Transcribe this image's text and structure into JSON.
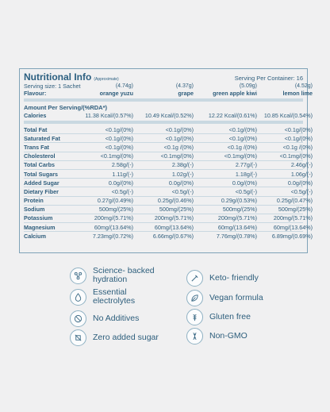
{
  "panel": {
    "title": "Nutritional Info",
    "approx": "(Approximate)",
    "serving_per_container": "Serving Per Container: 16",
    "serving_size_label": "Serving size: 1 Sachet",
    "flavour_label": "Flavour:",
    "flavours": [
      {
        "weight": "(4.74g)",
        "name": "orange yuzu"
      },
      {
        "weight": "(4.37g)",
        "name": "grape"
      },
      {
        "weight": "(5.09g)",
        "name": "green apple kiwi"
      },
      {
        "weight": "(4.52g)",
        "name": "lemon lime"
      }
    ],
    "amount_label": "Amount Per Serving/(%RDA*)",
    "calories_label": "Calories",
    "calories": [
      "11.38 Kcal/(0.57%)",
      "10.49 Kcal/(0.52%)",
      "12.22 Kcal/(0.61%)",
      "10.85 Kcal/(0.54%)"
    ],
    "rows": [
      {
        "label": "Total Fat",
        "values": [
          "<0.1g/(0%)",
          "<0.1g/(0%)",
          "<0.1g/(0%)",
          "<0.1g/(0%)"
        ]
      },
      {
        "label": "Saturated Fat",
        "values": [
          "<0.1g/(0%)",
          "<0.1g/(0%)",
          "<0.1g/(0%)",
          "<0.1g/(0%)"
        ]
      },
      {
        "label": "Trans Fat",
        "values": [
          "<0.1g/(0%)",
          "<0.1g /(0%)",
          "<0.1g /(0%)",
          "<0.1g /(0%)"
        ]
      },
      {
        "label": "Cholesterol",
        "values": [
          "<0.1mg/(0%)",
          "<0.1mg/(0%)",
          "<0.1mg/(0%)",
          "<0.1mg/(0%)"
        ]
      },
      {
        "label": "Total Carbs",
        "values": [
          "2.58g/(-)",
          "2.38g/(-)",
          "2.77g/(-)",
          "2.46g/(-)"
        ]
      },
      {
        "label": "Total Sugars",
        "values": [
          "1.11g/(-)",
          "1.02g/(-)",
          "1.18g/(-)",
          "1.06g/(-)"
        ]
      },
      {
        "label": "Added Sugar",
        "values": [
          "0.0g/(0%)",
          "0.0g/(0%)",
          "0.0g/(0%)",
          "0.0g/(0%)"
        ]
      },
      {
        "label": "Dietary Fiber",
        "values": [
          "<0.5g/(-)",
          "<0.5g/(-)",
          "<0.5g/(-)",
          "<0.5g/(-)"
        ]
      },
      {
        "label": "Protein",
        "values": [
          "0.27g/(0.49%)",
          "0.25g/(0.46%)",
          "0.29g/(0.53%)",
          "0.25g/(0.47%)"
        ]
      },
      {
        "label": "Sodium",
        "values": [
          "500mg/(25%)",
          "500mg/(25%)",
          "500mg/(25%)",
          "500mg/(25%)"
        ]
      },
      {
        "label": "Potassium",
        "values": [
          "200mg/(5.71%)",
          "200mg/(5.71%)",
          "200mg/(5.71%)",
          "200mg/(5.71%)"
        ]
      },
      {
        "label": "Magnesium",
        "values": [
          "60mg/(13.64%)",
          "60mg/(13.64%)",
          "60mg/(13.64%)",
          "60mg/(13.64%)"
        ]
      },
      {
        "label": "Calcium",
        "values": [
          "7.23mg/(0.72%)",
          "6.66mg/(0.67%)",
          "7.76mg/(0.78%)",
          "6.89mg/(0.69%)"
        ]
      }
    ]
  },
  "features": {
    "left": [
      {
        "icon": "molecule-icon",
        "text": "Science- backed hydration"
      },
      {
        "icon": "droplet-icon",
        "text": "Essential electrolytes"
      },
      {
        "icon": "no-additives-icon",
        "text": "No Additives"
      },
      {
        "icon": "no-sugar-icon",
        "text": "Zero added sugar"
      }
    ],
    "right": [
      {
        "icon": "keto-icon",
        "text": "Keto- friendly"
      },
      {
        "icon": "vegan-icon",
        "text": "Vegan formula"
      },
      {
        "icon": "gluten-free-icon",
        "text": "Gluten free"
      },
      {
        "icon": "non-gmo-icon",
        "text": "Non-GMO"
      }
    ]
  },
  "colors": {
    "accent": "#2e5d7c",
    "border": "#7fa3b8",
    "background": "#f0f0f1"
  }
}
